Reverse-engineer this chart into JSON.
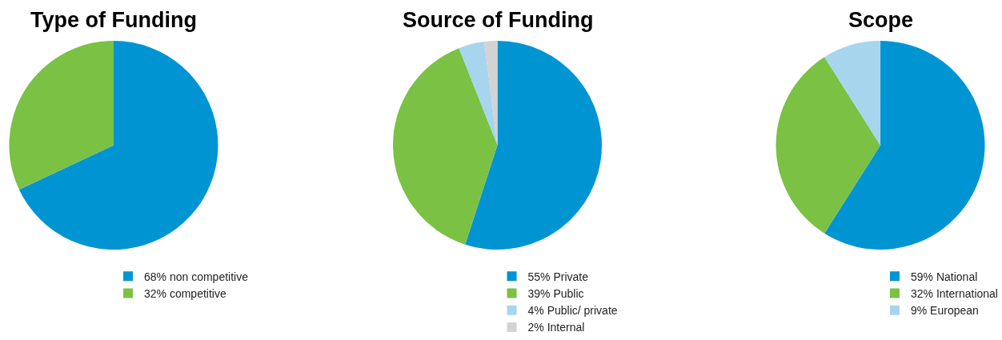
{
  "chart_data": [
    {
      "type": "pie",
      "title": "Type of Funding",
      "categories": [
        "68% non competitive",
        "32% competitive"
      ],
      "values": [
        68,
        32
      ],
      "colors": [
        "#0095d2",
        "#7bc143"
      ],
      "legend": "bottom"
    },
    {
      "type": "pie",
      "title": "Source of Funding",
      "categories": [
        "55% Private",
        "39% Public",
        "4% Public/ private",
        "2% Internal"
      ],
      "values": [
        55,
        39,
        4,
        2
      ],
      "colors": [
        "#0095d2",
        "#7bc143",
        "#a8d5ee",
        "#d3d3d3"
      ],
      "legend": "bottom"
    },
    {
      "type": "pie",
      "title": "Scope",
      "categories": [
        "59% National",
        "32% International",
        "9% European"
      ],
      "values": [
        59,
        32,
        9
      ],
      "colors": [
        "#0095d2",
        "#7bc143",
        "#a8d5ee"
      ],
      "legend": "bottom"
    }
  ]
}
